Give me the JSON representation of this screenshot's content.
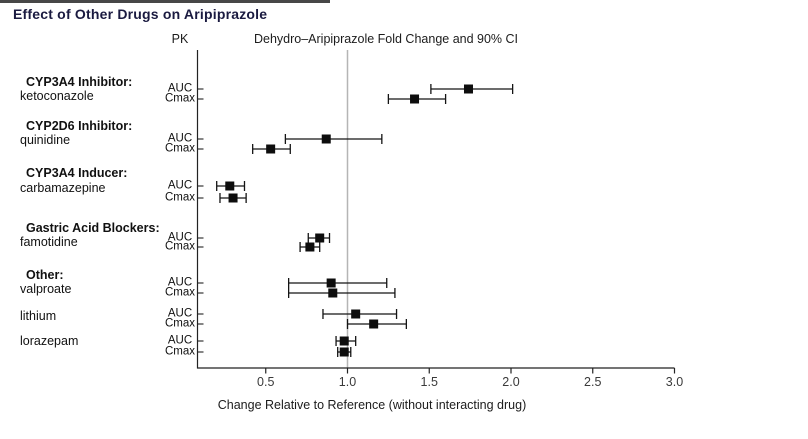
{
  "title": "Effect of Other Drugs on Aripiprazole",
  "header": {
    "pk_label": "PK",
    "plot_label": "Dehydro–Aripiprazole Fold Change and 90% CI"
  },
  "chart_data": {
    "type": "scatter",
    "subtype": "forest-plot",
    "title": "Dehydro–Aripiprazole Fold Change and 90% CI",
    "xlabel": "Change Relative to Reference (without interacting drug)",
    "xlim": [
      0.08,
      3.0
    ],
    "x_ticks": [
      0.5,
      1.0,
      1.5,
      2.0,
      2.5,
      3.0
    ],
    "reference_line": 1.0,
    "ci_level": "90%",
    "grid": false,
    "groups": [
      {
        "category": "CYP3A4 Inhibitor:",
        "drug": "ketoconazole",
        "rows": [
          {
            "pk": "AUC",
            "estimate": 1.74,
            "ci_low": 1.51,
            "ci_high": 2.01
          },
          {
            "pk": "Cmax",
            "estimate": 1.41,
            "ci_low": 1.25,
            "ci_high": 1.6
          }
        ]
      },
      {
        "category": "CYP2D6 Inhibitor:",
        "drug": "quinidine",
        "rows": [
          {
            "pk": "AUC",
            "estimate": 0.87,
            "ci_low": 0.62,
            "ci_high": 1.21
          },
          {
            "pk": "Cmax",
            "estimate": 0.53,
            "ci_low": 0.42,
            "ci_high": 0.65
          }
        ]
      },
      {
        "category": "CYP3A4 Inducer:",
        "drug": "carbamazepine",
        "rows": [
          {
            "pk": "AUC",
            "estimate": 0.28,
            "ci_low": 0.2,
            "ci_high": 0.37
          },
          {
            "pk": "Cmax",
            "estimate": 0.3,
            "ci_low": 0.22,
            "ci_high": 0.38
          }
        ]
      },
      {
        "category": "Gastric Acid Blockers:",
        "drug": "famotidine",
        "rows": [
          {
            "pk": "AUC",
            "estimate": 0.83,
            "ci_low": 0.76,
            "ci_high": 0.89
          },
          {
            "pk": "Cmax",
            "estimate": 0.77,
            "ci_low": 0.71,
            "ci_high": 0.83
          }
        ]
      },
      {
        "category": "Other:",
        "drug": "valproate",
        "rows": [
          {
            "pk": "AUC",
            "estimate": 0.9,
            "ci_low": 0.64,
            "ci_high": 1.24
          },
          {
            "pk": "Cmax",
            "estimate": 0.91,
            "ci_low": 0.64,
            "ci_high": 1.29
          }
        ]
      },
      {
        "category": null,
        "drug": "lithium",
        "rows": [
          {
            "pk": "AUC",
            "estimate": 1.05,
            "ci_low": 0.85,
            "ci_high": 1.3
          },
          {
            "pk": "Cmax",
            "estimate": 1.16,
            "ci_low": 1.0,
            "ci_high": 1.36
          }
        ]
      },
      {
        "category": null,
        "drug": "lorazepam",
        "rows": [
          {
            "pk": "AUC",
            "estimate": 0.98,
            "ci_low": 0.93,
            "ci_high": 1.05
          },
          {
            "pk": "Cmax",
            "estimate": 0.98,
            "ci_low": 0.94,
            "ci_high": 1.02
          }
        ]
      }
    ],
    "colors": {
      "marker": "#0d0d0d",
      "ci_line": "#141414",
      "reference_line": "#b5b5b5",
      "axis": "#222222",
      "tick_text": "#3a3a3a",
      "title_text": "#1a1a40"
    }
  }
}
